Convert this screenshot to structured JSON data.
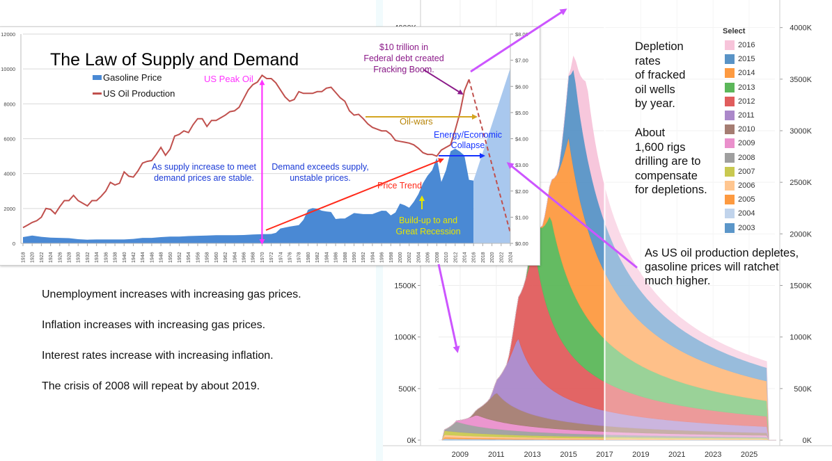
{
  "chart_data": [
    {
      "type": "area",
      "title": "",
      "subtitle_notes": [
        "Depletion rates of fracked oil wells by year.",
        "About 1,600 rigs drilling are to compensate for depletions."
      ],
      "xlabel": "",
      "ylabel": "",
      "x_ticks": [
        "2009",
        "2011",
        "2013",
        "2015",
        "2017",
        "2019",
        "2021",
        "2023",
        "2025"
      ],
      "y_ticks": [
        "0K",
        "500K",
        "1000K",
        "1500K",
        "2000K",
        "2500K",
        "3000K",
        "3500K",
        "4000K"
      ],
      "ylim": [
        0,
        4200000
      ],
      "xlim": [
        2007.5,
        2026.5
      ],
      "legend_title": "Select",
      "legend_position": "top-right",
      "stacked": true,
      "series": [
        {
          "name": "2003",
          "color": "#5b96c9",
          "start": 2008.0,
          "peak": 5000,
          "peak_x": 2008.0,
          "end": 1000
        },
        {
          "name": "2004",
          "color": "#c1d4ec",
          "start": 2008.0,
          "peak": 9000,
          "peak_x": 2008.0,
          "end": 2000
        },
        {
          "name": "2005",
          "color": "#fd9a41",
          "start": 2008.0,
          "peak": 15000,
          "peak_x": 2008.0,
          "end": 3000
        },
        {
          "name": "2006",
          "color": "#ffc690",
          "start": 2008.0,
          "peak": 25000,
          "peak_x": 2008.0,
          "end": 5000
        },
        {
          "name": "2007",
          "color": "#c9c950",
          "start": 2008.0,
          "peak": 40000,
          "peak_x": 2008.0,
          "end": 8000
        },
        {
          "name": "2008",
          "color": "#9f9f9f",
          "start": 2008.0,
          "peak": 100000,
          "peak_x": 2008.8,
          "end": 12000
        },
        {
          "name": "2009",
          "color": "#ea90cc",
          "start": 2008.6,
          "peak": 110000,
          "peak_x": 2009.9,
          "end": 15000
        },
        {
          "name": "2010",
          "color": "#a57d72",
          "start": 2009.5,
          "peak": 280000,
          "peak_x": 2011.0,
          "end": 25000
        },
        {
          "name": "2011",
          "color": "#ab88ca",
          "start": 2010.6,
          "peak": 700000,
          "peak_x": 2012.2,
          "end": 60000
        },
        {
          "name": "2012",
          "color": "#e05d5d",
          "start": 2011.6,
          "peak": 1250000,
          "peak_x": 2013.1,
          "end": 100000
        },
        {
          "name": "2013",
          "color": "#5cb75a",
          "start": 2012.6,
          "peak": 1000000,
          "peak_x": 2014.0,
          "end": 150000
        },
        {
          "name": "2014",
          "color": "#fd9a41",
          "start": 2013.5,
          "peak": 1400000,
          "peak_x": 2015.0,
          "end": 190000
        },
        {
          "name": "2015",
          "color": "#5993c6",
          "start": 2014.4,
          "peak": 1000000,
          "peak_x": 2015.3,
          "end": 130000
        },
        {
          "name": "2016",
          "color": "#f7c4da",
          "start": 2015.0,
          "peak": 700000,
          "peak_x": 2016.0,
          "end": 60000
        }
      ],
      "forecast_split_x": 2017.0
    },
    {
      "type": "line",
      "title": "The Law of Supply and Demand",
      "xlabel": "",
      "ylabel": "US Oil Production",
      "y2label": "Gasoline Price",
      "x_ticks": [
        "1918",
        "1920",
        "1922",
        "1924",
        "1926",
        "1928",
        "1930",
        "1932",
        "1934",
        "1936",
        "1938",
        "1940",
        "1942",
        "1944",
        "1946",
        "1948",
        "1950",
        "1952",
        "1954",
        "1956",
        "1958",
        "1960",
        "1962",
        "1964",
        "1966",
        "1968",
        "1970",
        "1972",
        "1974",
        "1976",
        "1978",
        "1980",
        "1982",
        "1984",
        "1986",
        "1988",
        "1990",
        "1992",
        "1994",
        "1996",
        "1998",
        "2000",
        "2002",
        "2004",
        "2006",
        "2008",
        "2010",
        "2012",
        "2014",
        "2016",
        "2018",
        "2020",
        "2022",
        "2024"
      ],
      "y_ticks": [
        "0",
        "2000",
        "4000",
        "6000",
        "8000",
        "10000",
        "12000"
      ],
      "y2_ticks": [
        "$0.00",
        "$1.00",
        "$2.00",
        "$3.00",
        "$4.00",
        "$5.00",
        "$6.00",
        "$7.00",
        "$8.00"
      ],
      "ylim": [
        0,
        12000
      ],
      "y2lim": [
        0,
        8
      ],
      "xlim": [
        1918,
        2024
      ],
      "legend": [
        "Gasoline Price",
        "US Oil Production"
      ],
      "legend_position": "top-left",
      "series": [
        {
          "name": "US Oil Production",
          "color": "#c0504d",
          "x": [
            1918,
            1919,
            1920,
            1921,
            1922,
            1923,
            1924,
            1925,
            1926,
            1927,
            1928,
            1929,
            1930,
            1931,
            1932,
            1933,
            1934,
            1935,
            1936,
            1937,
            1938,
            1939,
            1940,
            1941,
            1942,
            1943,
            1944,
            1945,
            1946,
            1947,
            1948,
            1949,
            1950,
            1951,
            1952,
            1953,
            1954,
            1955,
            1956,
            1957,
            1958,
            1959,
            1960,
            1961,
            1962,
            1963,
            1964,
            1965,
            1966,
            1967,
            1968,
            1969,
            1970,
            1971,
            1972,
            1973,
            1974,
            1975,
            1976,
            1977,
            1978,
            1979,
            1980,
            1981,
            1982,
            1983,
            1984,
            1985,
            1986,
            1987,
            1988,
            1989,
            1990,
            1991,
            1992,
            1993,
            1994,
            1995,
            1996,
            1997,
            1998,
            1999,
            2000,
            2001,
            2002,
            2003,
            2004,
            2005,
            2006,
            2007,
            2008,
            2009,
            2010,
            2011,
            2012,
            2013,
            2014,
            2015
          ],
          "values": [
            900,
            1050,
            1200,
            1300,
            1500,
            2000,
            1950,
            1700,
            2100,
            2450,
            2450,
            2750,
            2450,
            2300,
            2150,
            2450,
            2450,
            2700,
            3000,
            3500,
            3350,
            3450,
            4100,
            3850,
            3800,
            4150,
            4600,
            4700,
            4750,
            5100,
            5500,
            5050,
            5400,
            6150,
            6250,
            6450,
            6350,
            6800,
            7150,
            7150,
            6700,
            7050,
            7050,
            7200,
            7350,
            7550,
            7600,
            7800,
            8300,
            8800,
            9100,
            9250,
            9637,
            9450,
            9450,
            9200,
            8800,
            8400,
            8150,
            8250,
            8700,
            8600,
            8600,
            8600,
            8700,
            8700,
            8900,
            8950,
            8650,
            8350,
            8150,
            7600,
            7350,
            7400,
            7150,
            6850,
            6650,
            6550,
            6450,
            6450,
            6250,
            5900,
            5850,
            5800,
            5750,
            5650,
            5450,
            5200,
            5100,
            5100,
            5000,
            5350,
            5500,
            5650,
            6500,
            7450,
            8750,
            9400
          ]
        },
        {
          "name": "US Oil Production (projection)",
          "color": "#c0504d",
          "dashed": true,
          "x": [
            2015,
            2024
          ],
          "values": [
            9400,
            600
          ]
        },
        {
          "name": "Gasoline Price",
          "color": "#4a89d4",
          "axis": "right",
          "x": [
            1918,
            1920,
            1922,
            1924,
            1926,
            1928,
            1930,
            1932,
            1934,
            1936,
            1938,
            1940,
            1942,
            1944,
            1946,
            1948,
            1950,
            1952,
            1954,
            1956,
            1958,
            1960,
            1962,
            1964,
            1966,
            1968,
            1970,
            1972,
            1973,
            1974,
            1976,
            1978,
            1979,
            1980,
            1981,
            1982,
            1983,
            1984,
            1985,
            1986,
            1987,
            1988,
            1990,
            1991,
            1992,
            1994,
            1996,
            1997,
            1998,
            1999,
            2000,
            2001,
            2002,
            2003,
            2004,
            2005,
            2006,
            2007,
            2008,
            2009,
            2010,
            2011,
            2012,
            2013,
            2014,
            2015,
            2016
          ],
          "values": [
            0.24,
            0.3,
            0.25,
            0.22,
            0.21,
            0.2,
            0.16,
            0.14,
            0.15,
            0.15,
            0.15,
            0.15,
            0.17,
            0.21,
            0.21,
            0.24,
            0.26,
            0.26,
            0.28,
            0.29,
            0.3,
            0.31,
            0.31,
            0.31,
            0.32,
            0.34,
            0.35,
            0.36,
            0.4,
            0.57,
            0.64,
            0.7,
            0.9,
            1.28,
            1.35,
            1.32,
            1.25,
            1.22,
            1.2,
            0.93,
            0.95,
            0.95,
            1.16,
            1.14,
            1.12,
            1.12,
            1.25,
            1.24,
            1.07,
            1.18,
            1.52,
            1.46,
            1.36,
            1.59,
            1.88,
            2.3,
            2.59,
            2.8,
            3.27,
            2.35,
            2.79,
            3.52,
            3.62,
            3.51,
            3.36,
            2.43,
            2.4
          ]
        },
        {
          "name": "Gasoline Price (projection)",
          "color": "#a9c8ee",
          "axis": "right",
          "x": [
            2016,
            2024
          ],
          "values": [
            2.4,
            6.7
          ]
        }
      ]
    }
  ],
  "left_chart": {
    "title": "The Law of Supply and Demand",
    "legend": {
      "gasoline": "Gasoline Price",
      "production": "US Oil Production"
    },
    "annotations": {
      "peak_oil": "US Peak Oil",
      "debt_line1": "$10 trillion in",
      "debt_line2": "Federal debt created",
      "debt_line3": "Fracking Boom.",
      "oil_wars": "Oil-wars",
      "collapse_line1": "Energy/Economic",
      "collapse_line2": "Collapse",
      "stable_line1": "As supply increase to meet",
      "stable_line2": "demand prices are stable.",
      "unstable_line1": "Demand exceeds supply,",
      "unstable_line2": "unstable prices.",
      "price_trend": "Price Trend",
      "recession_line1": "Build-up to and",
      "recession_line2": "Great Recession"
    },
    "colors": {
      "peak_oil": "#ff33ff",
      "debt": "#8b1a89",
      "oil_wars": "#b8860b",
      "collapse": "#1432ff",
      "stable": "#1a3ad6",
      "price_trend": "#ff2a1a",
      "recession": "#e6e600"
    }
  },
  "right_chart": {
    "legend_title": "Select",
    "notes": {
      "depletion": [
        "Depletion",
        "rates",
        "of fracked",
        "oil wells",
        "by year."
      ],
      "rigs": [
        "About",
        "1,600 rigs",
        "drilling are to",
        "compensate",
        "for depletions."
      ],
      "ratchet": [
        "As US oil production depletes,",
        "gasoline prices will ratchet",
        "much higher."
      ]
    }
  },
  "bullets": [
    "Unemployment increases with increasing gas prices.",
    "Inflation increases with increasing gas prices.",
    "Interest rates increase with increasing inflation.",
    "The crisis of 2008 will repeat by about 2019."
  ],
  "arrow_color": "#cc55ff"
}
